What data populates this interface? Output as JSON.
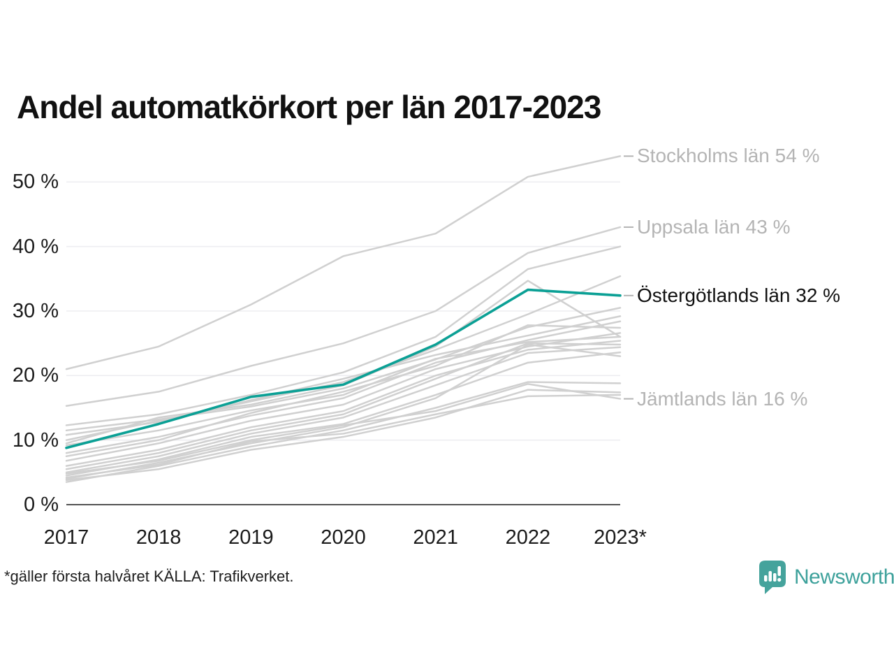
{
  "title": "Andel automatkörkort per län 2017-2023",
  "footnote": "*gäller första halvåret KÄLLA: Trafikverket.",
  "logo": {
    "text": "Newsworthy",
    "icon": "bar-chart-speech-bubble-icon"
  },
  "colors": {
    "highlight": "#0ba095",
    "muted_line": "#d0d0d0",
    "grid": "#ededf1",
    "axis": "#1a1a1a",
    "muted_label": "#b4b4b4",
    "dark_label": "#111111",
    "logo_teal": "#45a39c"
  },
  "chart_data": {
    "type": "line",
    "title": "Andel automatkörkort per län 2017-2023",
    "xlabel": "",
    "ylabel": "",
    "categories": [
      "2017",
      "2018",
      "2019",
      "2020",
      "2021",
      "2022",
      "2023*"
    ],
    "y_ticks": [
      {
        "value": 0,
        "label": "0 %"
      },
      {
        "value": 10,
        "label": "10 %"
      },
      {
        "value": 20,
        "label": "20 %"
      },
      {
        "value": 30,
        "label": "30 %"
      },
      {
        "value": 40,
        "label": "40 %"
      },
      {
        "value": 50,
        "label": "50 %"
      }
    ],
    "ylim": [
      0,
      57
    ],
    "grid": "horizontal",
    "legend_position": "right-edge-annotations",
    "series": [
      {
        "name": "Stockholms län",
        "label": "Stockholms län 54 %",
        "highlight": false,
        "values": [
          21,
          24.5,
          31,
          38.5,
          42,
          50.8,
          54
        ]
      },
      {
        "name": "Uppsala län",
        "label": "Uppsala län 43 %",
        "highlight": false,
        "values": [
          15.3,
          17.5,
          21.5,
          25,
          30,
          39,
          43
        ]
      },
      {
        "name": "Östergötlands län",
        "label": "Östergötlands län 32 %",
        "highlight": true,
        "values": [
          8.8,
          12.5,
          16.7,
          18.6,
          24.8,
          33.3,
          32.4
        ]
      },
      {
        "name": "Jämtlands län",
        "label": "Jämtlands län 16 %",
        "highlight": false,
        "values": [
          4.8,
          6.8,
          10,
          12.3,
          14.5,
          18.7,
          16.4
        ]
      }
    ],
    "background_series": [
      [
        12.3,
        14,
        17,
        20.5,
        26,
        36.5,
        40
      ],
      [
        10,
        13,
        16,
        19,
        24,
        29.5,
        35.4
      ],
      [
        9.5,
        13.5,
        15.5,
        18.5,
        24.5,
        34.7,
        26
      ],
      [
        11.5,
        13.2,
        15.2,
        18,
        22.5,
        27.5,
        30.5
      ],
      [
        10.8,
        12.8,
        16.2,
        19.5,
        23.2,
        26.2,
        29.2
      ],
      [
        8,
        10.5,
        13.8,
        16.5,
        22,
        25.5,
        28.4
      ],
      [
        7.5,
        10,
        14.2,
        17.5,
        21.5,
        27.8,
        27.4
      ],
      [
        6.8,
        9.5,
        13,
        15.5,
        21,
        24.5,
        26.6
      ],
      [
        9.2,
        11.5,
        14.6,
        17,
        22.6,
        25.2,
        26
      ],
      [
        6,
        8.5,
        12,
        14.5,
        20,
        24,
        25.4
      ],
      [
        5.5,
        8,
        11.5,
        14,
        19.5,
        25,
        24.8
      ],
      [
        5,
        7.5,
        11,
        13.5,
        18.5,
        23.5,
        24.4
      ],
      [
        4.5,
        7,
        10.5,
        12.5,
        17,
        22,
        23.6
      ],
      [
        4,
        6.5,
        9.5,
        12,
        16.5,
        24.8,
        23
      ],
      [
        3.5,
        6,
        9,
        11.5,
        15,
        19,
        18.8
      ],
      [
        3.8,
        5.5,
        8.5,
        10.5,
        13.5,
        17.8,
        17.4
      ],
      [
        4.2,
        6.2,
        9.8,
        11,
        14,
        16.8,
        17
      ]
    ]
  }
}
